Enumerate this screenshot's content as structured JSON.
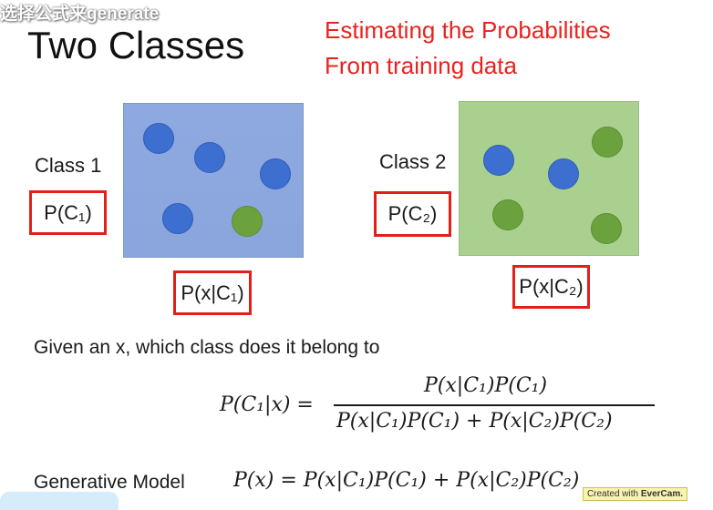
{
  "header": {
    "watermark": "选择公式来generate",
    "title": "Two Classes",
    "subtitle_line1": "Estimating the Probabilities",
    "subtitle_line2": "From training data"
  },
  "class1": {
    "label": "Class 1",
    "prior": "P(C₁)",
    "likelihood": "P(x|C₁)"
  },
  "class2": {
    "label": "Class 2",
    "prior": "P(C₂)",
    "likelihood": "P(x|C₂)"
  },
  "question": "Given an x, which class does it belong to",
  "posterior": {
    "lhs": "P(C₁|x) =",
    "numerator": "P(x|C₁)P(C₁)",
    "denominator": "P(x|C₁)P(C₁) + P(x|C₂)P(C₂)"
  },
  "generative": {
    "label": "Generative Model",
    "formula": "P(x) = P(x|C₁)P(C₁) + P(x|C₂)P(C₂)"
  },
  "badge": {
    "prefix": "Created with",
    "brand": "EverCam."
  },
  "colors": {
    "accent_red": "#e0201b",
    "class1_bg": "#8ea9e0",
    "class2_bg": "#a9d08e",
    "blue_ball": "#3d6fd0",
    "green_ball": "#6ca23e"
  }
}
